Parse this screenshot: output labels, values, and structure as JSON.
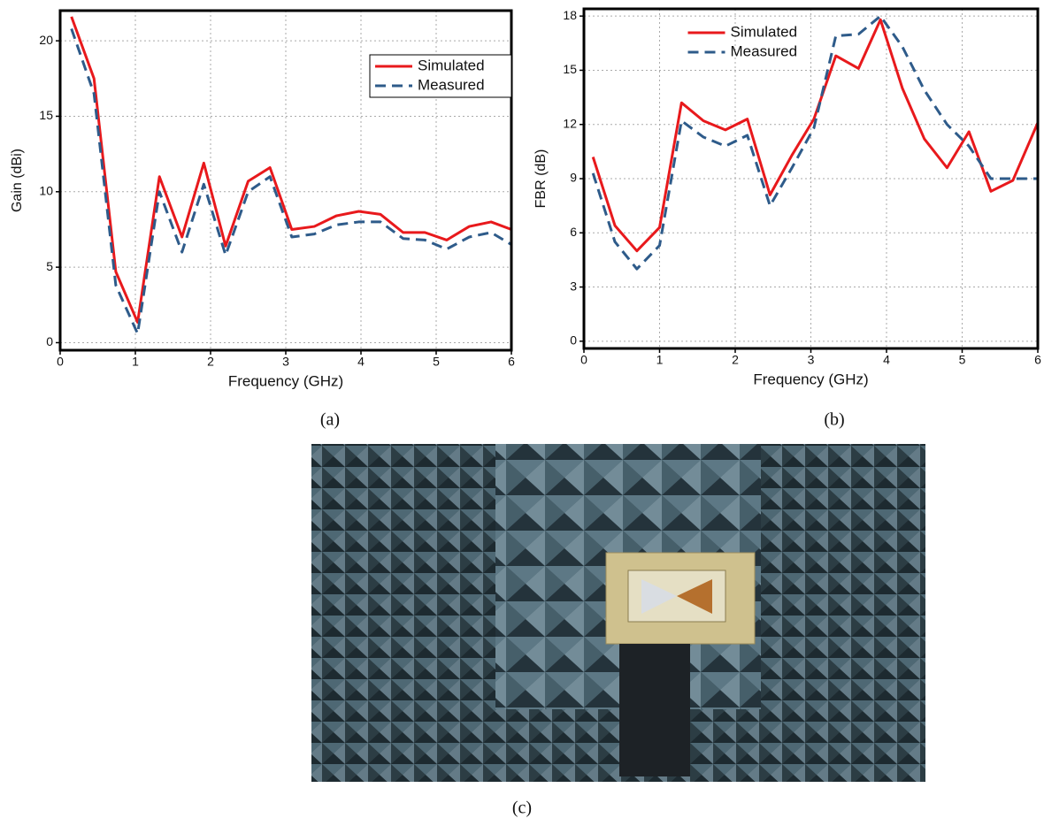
{
  "chart_data": [
    {
      "type": "line",
      "ylabel": "Gain (dBi)",
      "xlabel": "Frequency (GHz)",
      "x": [
        0.15,
        0.45,
        0.74,
        1.03,
        1.32,
        1.62,
        1.91,
        2.2,
        2.5,
        2.79,
        3.08,
        3.38,
        3.67,
        3.97,
        4.26,
        4.56,
        4.85,
        5.14,
        5.44,
        5.73,
        6.0
      ],
      "series": [
        {
          "name": "Simulated",
          "color": "#e8191c",
          "linestyle": "solid",
          "values": [
            21.6,
            17.5,
            4.7,
            1.35,
            11.0,
            7.0,
            11.9,
            6.4,
            10.7,
            11.6,
            7.5,
            7.7,
            8.4,
            8.7,
            8.5,
            7.3,
            7.3,
            6.8,
            7.7,
            8.0,
            7.5
          ]
        },
        {
          "name": "Measured",
          "color": "#2e5b8a",
          "linestyle": "dashed",
          "values": [
            20.8,
            16.5,
            3.8,
            0.6,
            10.0,
            6.0,
            10.5,
            5.8,
            10.0,
            11.0,
            7.0,
            7.2,
            7.8,
            8.0,
            8.0,
            6.9,
            6.8,
            6.2,
            7.0,
            7.3,
            6.5
          ]
        }
      ],
      "xlim": [
        0,
        6
      ],
      "xticks": [
        0,
        1,
        2,
        3,
        4,
        5,
        6
      ],
      "ylim": [
        -0.5,
        22
      ],
      "yticks": [
        0,
        5,
        10,
        15,
        20
      ],
      "grid": true,
      "legend": "upper right",
      "legend_frame": true
    },
    {
      "type": "line",
      "ylabel": "FBR (dB)",
      "xlabel": "Frequency (GHz)",
      "x": [
        0.12,
        0.41,
        0.7,
        1.0,
        1.29,
        1.58,
        1.87,
        2.16,
        2.46,
        2.75,
        3.04,
        3.33,
        3.63,
        3.92,
        4.21,
        4.5,
        4.8,
        5.09,
        5.38,
        5.67,
        6.0
      ],
      "series": [
        {
          "name": "Simulated",
          "color": "#e8191c",
          "linestyle": "solid",
          "values": [
            10.2,
            6.4,
            5.0,
            6.3,
            13.2,
            12.2,
            11.7,
            12.3,
            8.1,
            10.3,
            12.3,
            15.8,
            15.1,
            17.8,
            14.0,
            11.2,
            9.6,
            11.6,
            8.3,
            8.9,
            12.1
          ]
        },
        {
          "name": "Measured",
          "color": "#2e5b8a",
          "linestyle": "dashed",
          "values": [
            9.3,
            5.5,
            4.0,
            5.3,
            12.2,
            11.3,
            10.8,
            11.4,
            7.5,
            9.6,
            11.8,
            16.9,
            17.0,
            18.0,
            16.3,
            13.9,
            12.0,
            10.8,
            9.0,
            9.0,
            9.0
          ]
        }
      ],
      "xlim": [
        0,
        6
      ],
      "xticks": [
        0,
        1,
        2,
        3,
        4,
        5,
        6
      ],
      "ylim": [
        -0.4,
        18.4
      ],
      "yticks": [
        0,
        3,
        6,
        9,
        12,
        15,
        18
      ],
      "grid": true,
      "legend": "upper center",
      "legend_frame": false
    }
  ],
  "captions": [
    "(a)",
    "(b)",
    "(c)"
  ]
}
